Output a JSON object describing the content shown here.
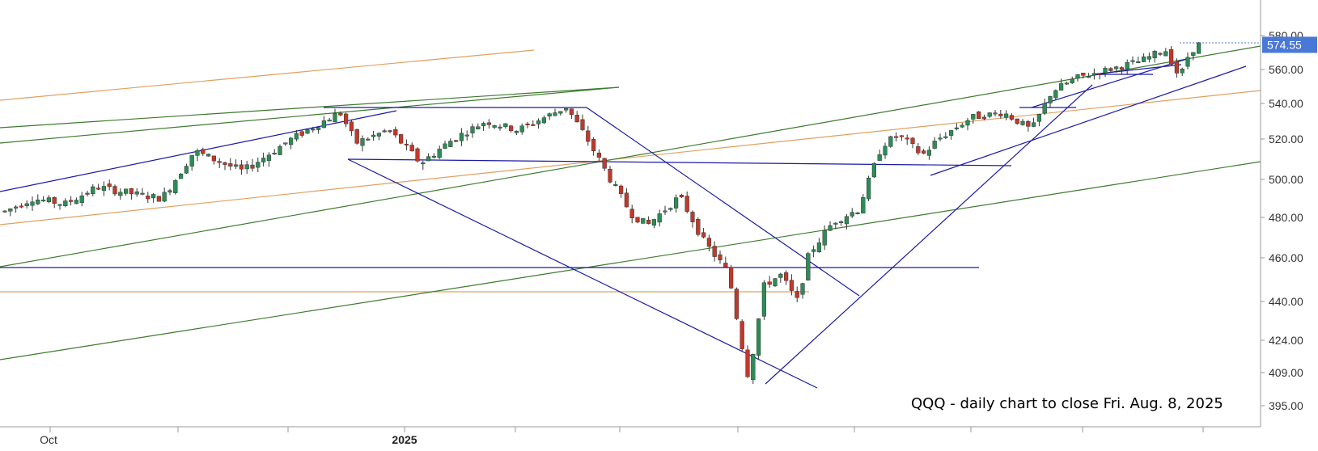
{
  "chart_data": {
    "type": "candlestick",
    "annotation": "QQQ - daily chart to close Fri. Aug. 8, 2025",
    "last_price_label": "574.55",
    "last_price": 574.55,
    "price_scale": {
      "ticks": [
        {
          "value": 580,
          "label": "580.00"
        },
        {
          "value": 560,
          "label": "560.00"
        },
        {
          "value": 540,
          "label": "540.00"
        },
        {
          "value": 520,
          "label": "520.00"
        },
        {
          "value": 500,
          "label": "500.00"
        },
        {
          "value": 480,
          "label": "480.00"
        },
        {
          "value": 460,
          "label": "460.00"
        },
        {
          "value": 440,
          "label": "440.00"
        },
        {
          "value": 424,
          "label": "424.00"
        },
        {
          "value": 409,
          "label": "409.00"
        },
        {
          "value": 395,
          "label": "395.00"
        }
      ]
    },
    "x_labels": [
      {
        "label": "Oct",
        "bold": false
      },
      {
        "label": "2025",
        "bold": true
      }
    ],
    "colors": {
      "up": "#2e8b57",
      "down": "#c0392b",
      "wick": "#333333",
      "blue_line": "#1a1aa6",
      "green_line": "#3d7a2e",
      "orange_line": "#e0a060",
      "last_price_bg": "#4a78d6",
      "grid": "#cccccc"
    }
  }
}
